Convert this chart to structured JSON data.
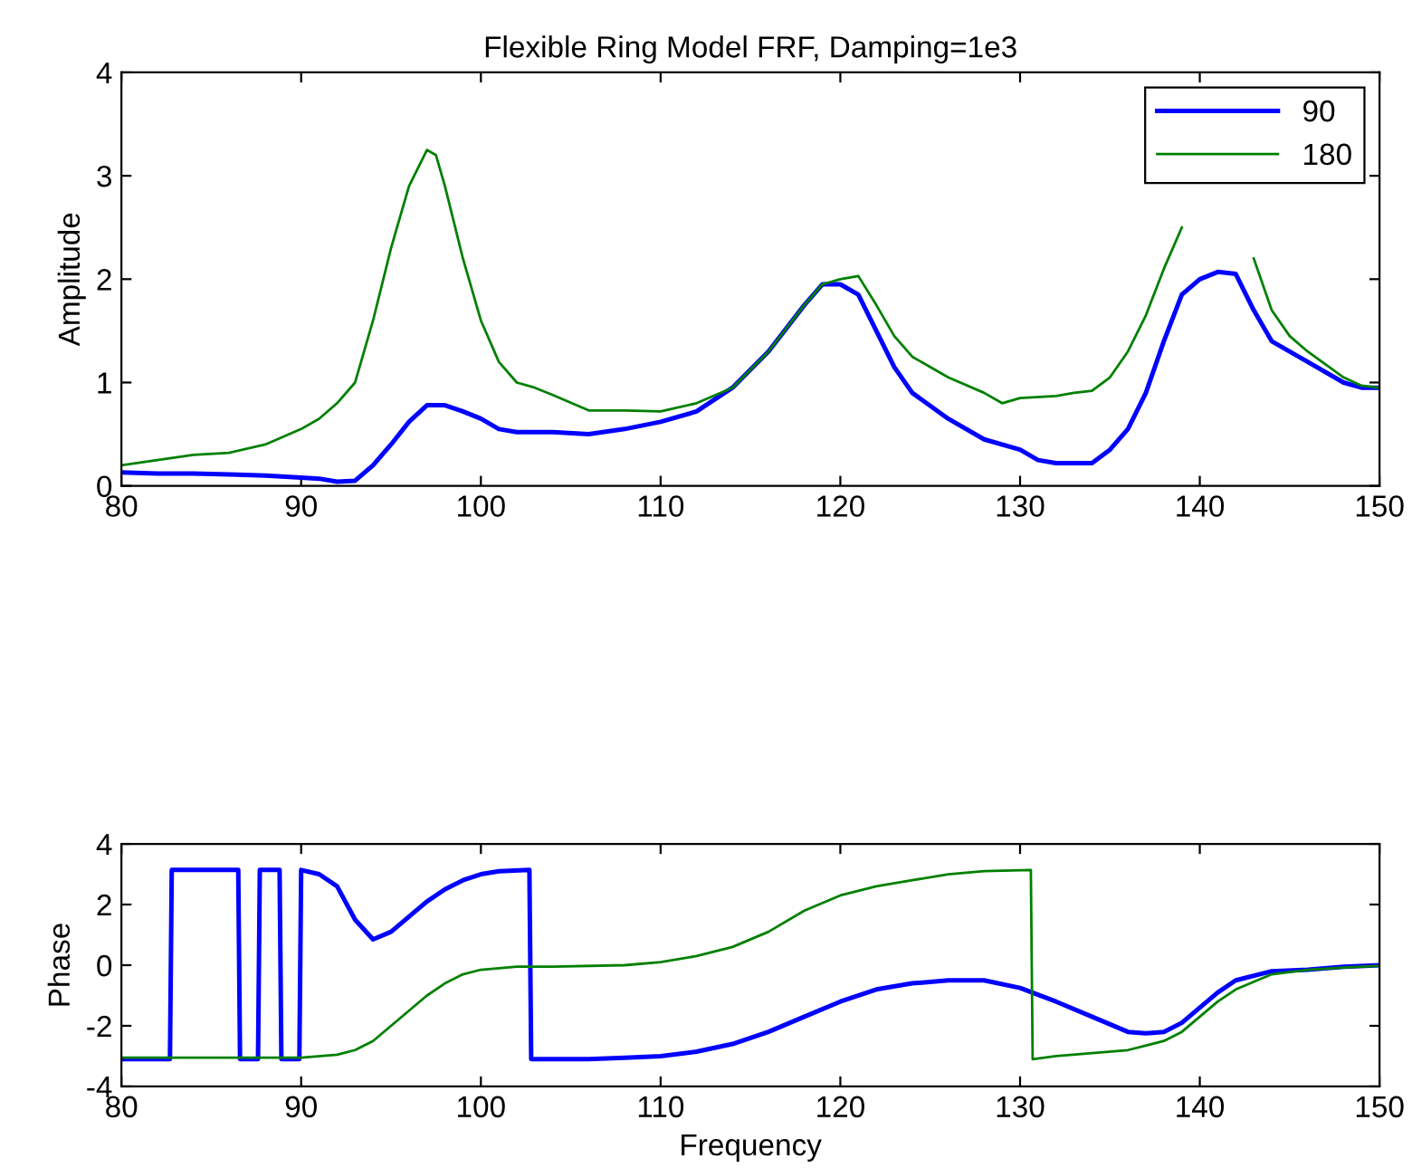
{
  "chart_data": [
    {
      "type": "line",
      "title": "Flexible Ring Model FRF, Damping=1e3",
      "ylabel": "Amplitude",
      "xlim": [
        80,
        150
      ],
      "xticks": [
        80,
        90,
        100,
        110,
        120,
        130,
        140,
        150
      ],
      "ylim": [
        0,
        4
      ],
      "yticks": [
        0,
        1,
        2,
        3,
        4
      ],
      "grid": false,
      "legend": "top right",
      "series": [
        {
          "name": "90",
          "color": "#0000ff",
          "x": [
            80,
            82,
            84,
            86,
            88,
            90,
            91,
            92,
            93,
            94,
            95,
            96,
            97,
            98,
            99,
            100,
            101,
            102,
            104,
            106,
            108,
            110,
            112,
            114,
            116,
            118,
            119,
            120,
            121,
            122,
            123,
            124,
            126,
            128,
            130,
            131,
            132,
            134,
            135,
            136,
            137,
            138,
            139,
            140,
            141,
            142,
            143,
            144,
            146,
            148,
            149,
            150
          ],
          "values": [
            0.13,
            0.12,
            0.12,
            0.11,
            0.1,
            0.08,
            0.07,
            0.04,
            0.05,
            0.2,
            0.4,
            0.62,
            0.78,
            0.78,
            0.72,
            0.65,
            0.55,
            0.52,
            0.52,
            0.5,
            0.55,
            0.62,
            0.72,
            0.95,
            1.3,
            1.75,
            1.95,
            1.95,
            1.85,
            1.5,
            1.15,
            0.9,
            0.65,
            0.45,
            0.35,
            0.25,
            0.22,
            0.22,
            0.35,
            0.55,
            0.9,
            1.4,
            1.85,
            2.0,
            2.07,
            2.05,
            1.7,
            1.4,
            1.2,
            1.0,
            0.95,
            0.95
          ]
        },
        {
          "name": "180",
          "color": "#008000",
          "x": [
            80,
            82,
            84,
            86,
            88,
            90,
            91,
            92,
            93,
            94,
            95,
            96,
            97,
            97.5,
            98,
            99,
            100,
            101,
            102,
            103,
            104,
            106,
            108,
            110,
            112,
            114,
            116,
            118,
            119,
            120,
            121,
            122,
            123,
            124,
            126,
            128,
            129,
            130,
            132,
            133,
            134,
            135,
            136,
            137,
            138,
            139,
            140,
            141,
            142,
            143,
            144,
            145,
            146,
            148,
            149,
            150
          ],
          "values": [
            0.2,
            0.25,
            0.3,
            0.32,
            0.4,
            0.55,
            0.65,
            0.8,
            1.0,
            1.6,
            2.3,
            2.9,
            3.25,
            3.2,
            2.9,
            2.2,
            1.6,
            1.2,
            1.0,
            0.95,
            0.88,
            0.73,
            0.73,
            0.72,
            0.8,
            0.95,
            1.3,
            1.75,
            1.95,
            2.0,
            2.03,
            1.75,
            1.45,
            1.25,
            1.05,
            0.9,
            0.8,
            0.85,
            0.87,
            0.9,
            0.92,
            1.05,
            1.3,
            1.65,
            2.1,
            2.5,
            null,
            null,
            null,
            2.2,
            1.7,
            1.45,
            1.3,
            1.05,
            0.97,
            0.95
          ]
        }
      ]
    },
    {
      "type": "line",
      "xlabel": "Frequency",
      "ylabel": "Phase",
      "xlim": [
        80,
        150
      ],
      "xticks": [
        80,
        90,
        100,
        110,
        120,
        130,
        140,
        150
      ],
      "ylim": [
        -4,
        4
      ],
      "yticks": [
        -4,
        -2,
        0,
        2,
        4
      ],
      "grid": false,
      "series": [
        {
          "color": "#0000ff",
          "x": [
            80,
            82.7,
            82.8,
            86.5,
            86.6,
            87.6,
            87.7,
            88.8,
            88.9,
            89.9,
            90.0,
            91,
            92,
            93,
            94,
            95,
            96,
            97,
            98,
            99,
            100,
            101,
            102.7,
            102.8,
            104,
            106,
            108,
            110,
            112,
            114,
            116,
            118,
            120,
            122,
            124,
            126,
            128,
            130,
            132,
            134,
            136,
            137,
            138,
            139,
            140,
            141,
            142,
            144,
            146,
            148,
            150
          ],
          "values": [
            -3.1,
            -3.1,
            3.14,
            3.14,
            -3.1,
            -3.1,
            3.14,
            3.14,
            -3.1,
            -3.1,
            3.14,
            3.0,
            2.6,
            1.5,
            0.85,
            1.1,
            1.6,
            2.1,
            2.5,
            2.8,
            3.0,
            3.1,
            3.14,
            -3.1,
            -3.1,
            -3.1,
            -3.05,
            -3.0,
            -2.85,
            -2.6,
            -2.2,
            -1.7,
            -1.2,
            -0.8,
            -0.6,
            -0.5,
            -0.5,
            -0.75,
            -1.2,
            -1.7,
            -2.2,
            -2.25,
            -2.2,
            -1.9,
            -1.4,
            -0.9,
            -0.5,
            -0.2,
            -0.15,
            -0.05,
            0.0
          ]
        },
        {
          "color": "#008000",
          "x": [
            80,
            84,
            88,
            90,
            92,
            93,
            94,
            95,
            96,
            97,
            98,
            99,
            100,
            102,
            104,
            108,
            110,
            112,
            114,
            116,
            118,
            120,
            122,
            124,
            126,
            128,
            130.6,
            130.7,
            132,
            134,
            136,
            138,
            139,
            140,
            141,
            142,
            144,
            146,
            148,
            150
          ],
          "values": [
            -3.05,
            -3.05,
            -3.05,
            -3.05,
            -2.95,
            -2.8,
            -2.5,
            -2.0,
            -1.5,
            -1.0,
            -0.6,
            -0.3,
            -0.15,
            -0.05,
            -0.05,
            0.0,
            0.1,
            0.3,
            0.6,
            1.1,
            1.8,
            2.3,
            2.6,
            2.8,
            3.0,
            3.1,
            3.14,
            -3.1,
            -3.0,
            -2.9,
            -2.8,
            -2.5,
            -2.2,
            -1.7,
            -1.2,
            -0.8,
            -0.3,
            -0.15,
            -0.08,
            -0.02
          ]
        }
      ]
    }
  ]
}
